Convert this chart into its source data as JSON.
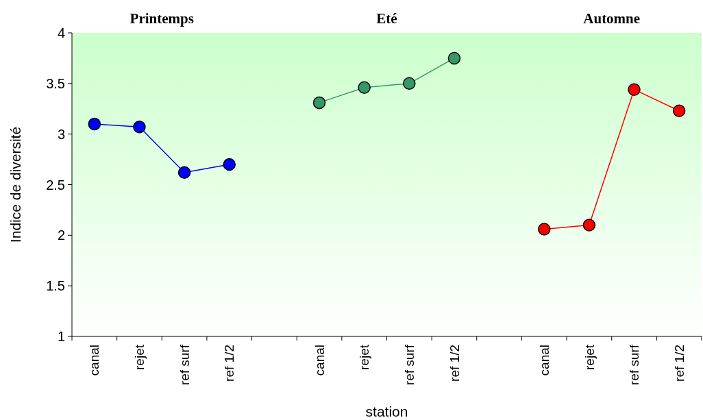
{
  "chart_data": {
    "type": "line",
    "xlabel": "station",
    "ylabel": "Indice de diversité",
    "categories": [
      "canal",
      "rejet",
      "ref surf",
      "ref 1/2",
      null,
      "canal",
      "rejet",
      "ref surf",
      "ref 1/2",
      null,
      "canal",
      "rejet",
      "ref surf",
      "ref 1/2"
    ],
    "series": [
      {
        "color": "#0000ff",
        "values": [
          3.1,
          3.07,
          2.62,
          2.7,
          null,
          null,
          null,
          null,
          null,
          null,
          null,
          null,
          null,
          null
        ]
      },
      {
        "color": "#339966",
        "values": [
          null,
          null,
          null,
          null,
          null,
          3.31,
          3.46,
          3.5,
          3.75,
          null,
          null,
          null,
          null,
          null
        ]
      },
      {
        "color": "#ff0000",
        "values": [
          null,
          null,
          null,
          null,
          null,
          null,
          null,
          null,
          null,
          null,
          2.06,
          2.1,
          3.44,
          3.23
        ]
      }
    ],
    "ylim": [
      1,
      4
    ],
    "yticks": [
      1,
      1.5,
      2,
      2.5,
      3,
      3.5,
      4
    ],
    "annotations": [
      "Printemps",
      "Eté",
      "Automne"
    ],
    "grid": false,
    "marker": "circle",
    "line_style": "solid"
  }
}
